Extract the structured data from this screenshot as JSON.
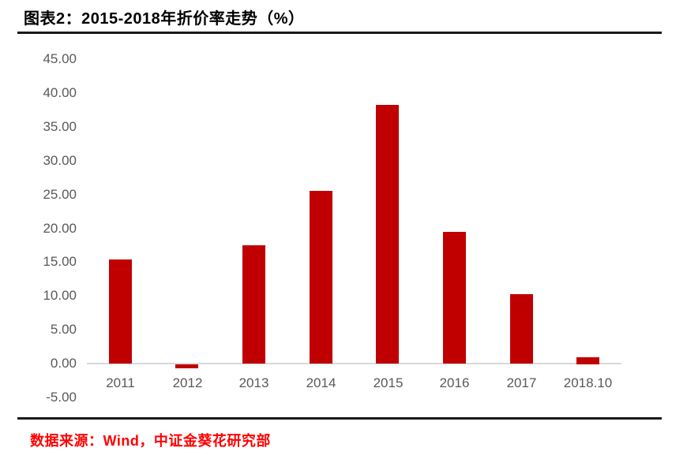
{
  "title": "图表2：2015-2018年折价率走势（%）",
  "source_note": "数据来源：Wind，中证金葵花研究部",
  "colors": {
    "bar": "#c00000",
    "title_text": "#000000",
    "axis_label": "#595959",
    "axis_line": "#d9d9d9",
    "divider": "#1a1a1a",
    "source_text": "#ff0000",
    "background": "#ffffff"
  },
  "chart_data": {
    "type": "bar",
    "title": "图表2：2015-2018年折价率走势（%）",
    "categories": [
      "2011",
      "2012",
      "2013",
      "2014",
      "2015",
      "2016",
      "2017",
      "2018.10"
    ],
    "values": [
      15.4,
      -0.6,
      17.5,
      25.5,
      38.2,
      19.5,
      10.3,
      1.0
    ],
    "xlabel": "",
    "ylabel": "",
    "ylim": [
      -5,
      45
    ],
    "ytick_step": 5,
    "ytick_labels": [
      "45.00",
      "40.00",
      "35.00",
      "30.00",
      "25.00",
      "20.00",
      "15.00",
      "10.00",
      "5.00",
      "0.00",
      "-5.00"
    ],
    "grid": false,
    "legend": "none",
    "bar_color": "#c00000"
  }
}
